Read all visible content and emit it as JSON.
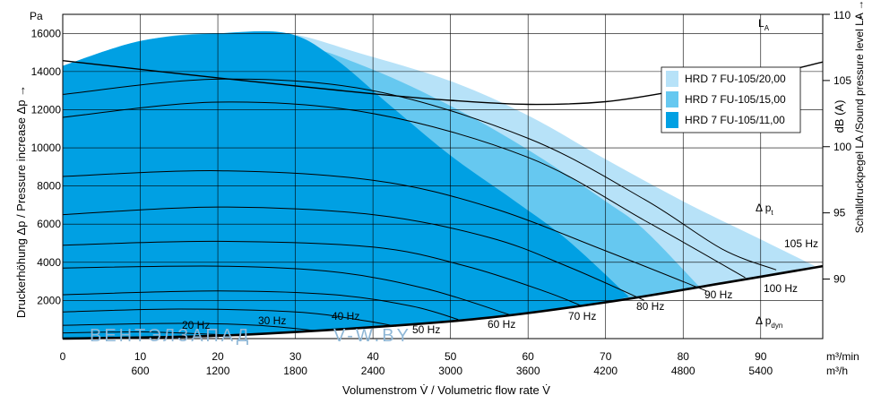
{
  "chart_data": {
    "type": "area",
    "left_axis": {
      "unit": "Pa",
      "label": "Druckerhöhung Δp / Pressure increase  Δp →",
      "ticks": [
        "2000",
        "4000",
        "6000",
        "8000",
        "10000",
        "12000",
        "14000",
        "16000"
      ],
      "range": [
        0,
        17000
      ]
    },
    "right_axis": {
      "unit_top": "110 →",
      "label_db": "dB (A)",
      "label": "Schalldruckpegel LA /Sound pressure level LA →",
      "ticks": [
        "90",
        "95",
        "100",
        "105"
      ],
      "range": [
        85.5,
        110
      ]
    },
    "x_axis": {
      "range": [
        0,
        98
      ],
      "ticks_m3min": [
        "0",
        "10",
        "20",
        "30",
        "40",
        "50",
        "60",
        "70",
        "80",
        "90"
      ],
      "ticks_m3h": [
        "600",
        "1200",
        "1800",
        "2400",
        "3000",
        "3600",
        "4200",
        "4800",
        "5400"
      ],
      "unit_m3min": "m³/min",
      "unit_m3h": "m³/h",
      "label": "Volumenstrom V̇ / Volumetric flow rate V̇"
    },
    "series": [
      {
        "name": "HRD 7 FU-105/20,00",
        "color": "#b7e2f8",
        "points": [
          [
            0,
            14300
          ],
          [
            10,
            15600
          ],
          [
            20,
            16000
          ],
          [
            29,
            16000
          ],
          [
            38,
            15000
          ],
          [
            50,
            13500
          ],
          [
            60,
            11700
          ],
          [
            70,
            9400
          ],
          [
            80,
            7200
          ],
          [
            90,
            5200
          ],
          [
            97,
            3800
          ]
        ]
      },
      {
        "name": "HRD 7 FU-105/15,00",
        "color": "#66c8f0",
        "points": [
          [
            0,
            14300
          ],
          [
            10,
            15600
          ],
          [
            20,
            16000
          ],
          [
            30,
            15500
          ],
          [
            40,
            14100
          ],
          [
            50,
            12200
          ],
          [
            60,
            9900
          ],
          [
            70,
            7200
          ],
          [
            75,
            5700
          ],
          [
            82,
            2750
          ]
        ]
      },
      {
        "name": "HRD 7 FU-105/11,00",
        "color": "#00a0e3",
        "points": [
          [
            0,
            14300
          ],
          [
            10,
            15600
          ],
          [
            20,
            16000
          ],
          [
            29,
            16000
          ],
          [
            35,
            14700
          ],
          [
            42,
            12300
          ],
          [
            50,
            9600
          ],
          [
            58,
            7300
          ],
          [
            65,
            5200
          ],
          [
            73,
            2200
          ]
        ]
      }
    ],
    "speed_curves": [
      {
        "label": "105 Hz",
        "points": [
          [
            0,
            12800
          ],
          [
            20,
            13600
          ],
          [
            40,
            13000
          ],
          [
            60,
            10500
          ],
          [
            75,
            7300
          ],
          [
            85,
            4700
          ],
          [
            92,
            3600
          ]
        ]
      },
      {
        "label": "100 Hz",
        "points": [
          [
            0,
            11600
          ],
          [
            20,
            12400
          ],
          [
            40,
            11800
          ],
          [
            60,
            9500
          ],
          [
            75,
            6200
          ],
          [
            88,
            3200
          ]
        ]
      },
      {
        "label": "90 Hz",
        "points": [
          [
            0,
            8500
          ],
          [
            20,
            8800
          ],
          [
            40,
            8300
          ],
          [
            55,
            6900
          ],
          [
            70,
            4600
          ],
          [
            83,
            2500
          ]
        ]
      },
      {
        "label": "80 Hz",
        "points": [
          [
            0,
            6500
          ],
          [
            20,
            6900
          ],
          [
            40,
            6500
          ],
          [
            55,
            5300
          ],
          [
            65,
            3800
          ],
          [
            75,
            2000
          ]
        ]
      },
      {
        "label": "70 Hz",
        "points": [
          [
            0,
            4900
          ],
          [
            20,
            5100
          ],
          [
            40,
            4800
          ],
          [
            52,
            3800
          ],
          [
            62,
            2500
          ],
          [
            67,
            1700
          ]
        ]
      },
      {
        "label": "60 Hz",
        "points": [
          [
            0,
            3700
          ],
          [
            20,
            3800
          ],
          [
            35,
            3500
          ],
          [
            47,
            2600
          ],
          [
            58,
            1200
          ]
        ]
      },
      {
        "label": "50 Hz",
        "points": [
          [
            0,
            2300
          ],
          [
            20,
            2500
          ],
          [
            35,
            2300
          ],
          [
            45,
            1700
          ],
          [
            51,
            1000
          ]
        ]
      },
      {
        "label": "40 Hz",
        "points": [
          [
            0,
            1400
          ],
          [
            15,
            1550
          ],
          [
            30,
            1400
          ],
          [
            38,
            1000
          ],
          [
            43,
            650
          ]
        ]
      },
      {
        "label": "30 Hz",
        "points": [
          [
            0,
            700
          ],
          [
            15,
            800
          ],
          [
            25,
            700
          ],
          [
            33,
            400
          ]
        ]
      },
      {
        "label": "20 Hz",
        "points": [
          [
            0,
            300
          ],
          [
            10,
            350
          ],
          [
            18,
            250
          ],
          [
            23,
            150
          ]
        ]
      }
    ],
    "system_curve": [
      [
        0,
        0
      ],
      [
        20,
        150
      ],
      [
        40,
        600
      ],
      [
        55,
        1100
      ],
      [
        70,
        1900
      ],
      [
        85,
        2900
      ],
      [
        98,
        3800
      ]
    ],
    "la_curve_db": [
      [
        0,
        106.5
      ],
      [
        20,
        105.2
      ],
      [
        40,
        104.0
      ],
      [
        50,
        103.5
      ],
      [
        60,
        103.2
      ],
      [
        70,
        103.4
      ],
      [
        80,
        104.3
      ],
      [
        90,
        105.3
      ],
      [
        98,
        106.4
      ]
    ],
    "annotations": {
      "la": "L",
      "la_sub": "A",
      "delta_pt": "Δ p",
      "delta_pt_sub": "t",
      "delta_pdyn": "Δ p",
      "delta_pdyn_sub": "dyn"
    },
    "watermark": {
      "left": "ВЕНТЭЛЗАПАД",
      "right": "V-W.BY"
    },
    "legend_placement": "top-right",
    "grid": true
  }
}
